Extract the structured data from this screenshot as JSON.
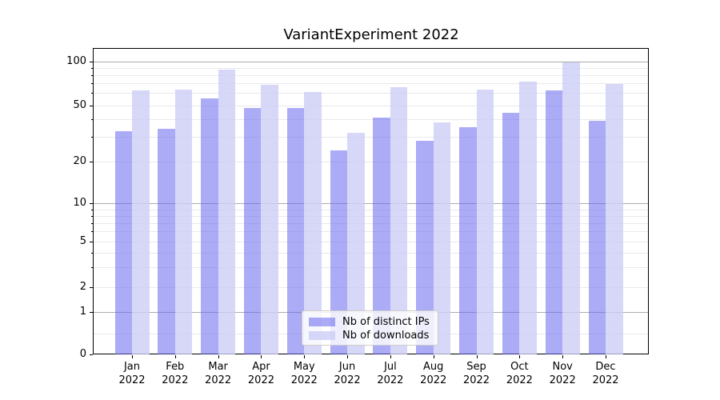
{
  "title": "VariantExperiment 2022",
  "chart_data": {
    "type": "bar",
    "title": "VariantExperiment 2022",
    "categories": [
      "Jan",
      "Feb",
      "Mar",
      "Apr",
      "May",
      "Jun",
      "Jul",
      "Aug",
      "Sep",
      "Oct",
      "Nov",
      "Dec"
    ],
    "category_year_line": "2022",
    "series": [
      {
        "name": "Nb of distinct IPs",
        "values": [
          33,
          34,
          55,
          48,
          48,
          24,
          41,
          28,
          35,
          44,
          62,
          39
        ],
        "color": "rgba(102,102,238,0.55)"
      },
      {
        "name": "Nb of downloads",
        "values": [
          62,
          63,
          87,
          68,
          61,
          32,
          66,
          38,
          63,
          72,
          98,
          69
        ],
        "color": "rgba(204,204,246,0.78)"
      }
    ],
    "yscale": "symlog",
    "ylim": [
      0,
      110
    ],
    "ytick_labels": [
      "100",
      "50",
      "20",
      "10",
      "5",
      "2",
      "1",
      "0"
    ],
    "grid": true,
    "legend_position": "lower center"
  },
  "colors": {
    "major_grid": "#ababab",
    "minor_grid": "#e9e9ee",
    "axis": "#000000",
    "legend_border": "#cccccc"
  }
}
